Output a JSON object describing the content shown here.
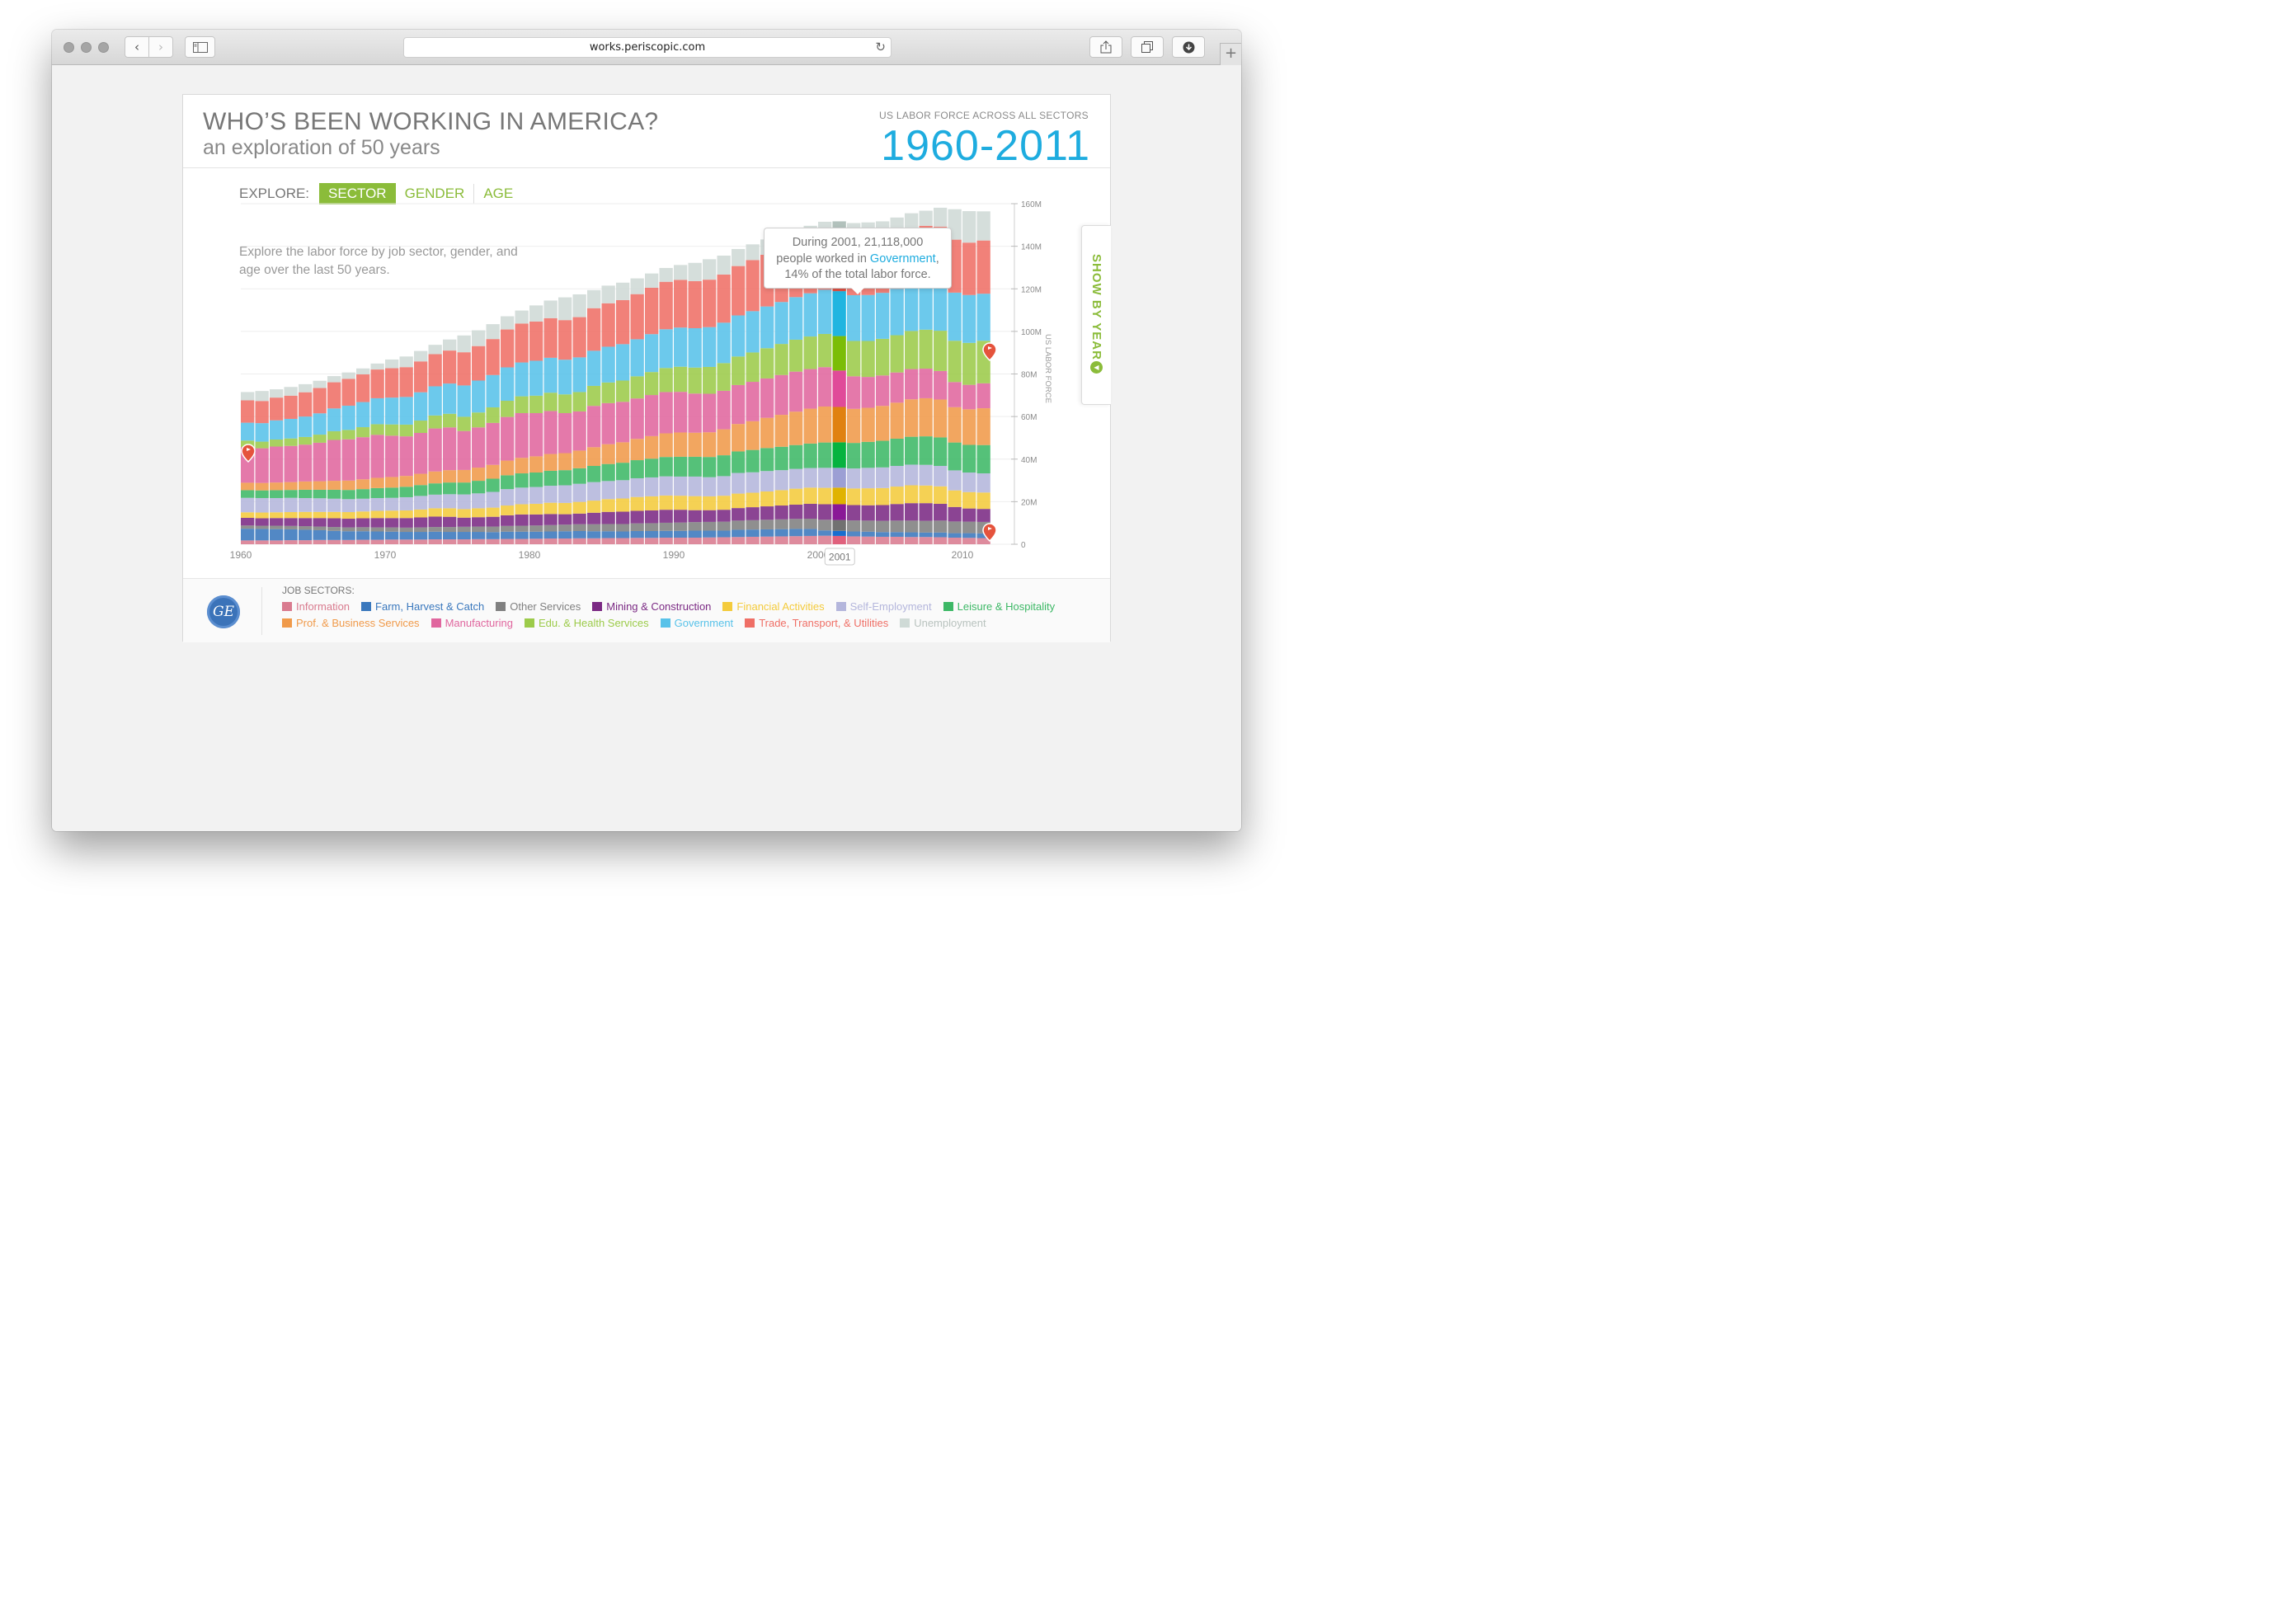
{
  "browser": {
    "url": "works.periscopic.com",
    "back_label": "‹",
    "forward_label": "›",
    "plus_label": "+"
  },
  "header": {
    "title": "WHO’S BEEN WORKING IN AMERICA?",
    "subtitle": "an exploration of 50 years",
    "right_label": "US LABOR FORCE ACROSS ALL SECTORS",
    "year_range": "1960-2011"
  },
  "explore": {
    "label": "EXPLORE:",
    "options": [
      "SECTOR",
      "GENDER",
      "AGE"
    ],
    "active": "SECTOR"
  },
  "description": "Explore the labor force by job sector, gender, and age over the last 50 years.",
  "show_by_year": "SHOW BY YEAR",
  "tooltip": {
    "prefix": "During",
    "year": "2001",
    "count": "21,118,000",
    "line2_prefix": "people worked in",
    "sector": "Government",
    "percent": "14%",
    "line3_suffix": "of the total labor force."
  },
  "footer": {
    "label": "JOB SECTORS:",
    "logo_text": "GE"
  },
  "colors": {
    "accent_green": "#8bbc3a",
    "accent_blue": "#1eacdf"
  },
  "chart_data": {
    "type": "area",
    "title": "US LABOR FORCE",
    "ylabel": "US LABOR FORCE",
    "xlabel": "",
    "ylim": [
      0,
      160
    ],
    "y_unit": "M",
    "y_ticks": [
      "0",
      "20M",
      "40M",
      "60M",
      "80M",
      "100M",
      "120M",
      "140M",
      "160M"
    ],
    "x_ticks": [
      "1960",
      "1970",
      "1980",
      "1990",
      "2000",
      "2010"
    ],
    "highlight_year": 2001,
    "highlight_label": "2001",
    "years": [
      1960,
      1961,
      1962,
      1963,
      1964,
      1965,
      1966,
      1967,
      1968,
      1969,
      1970,
      1971,
      1972,
      1973,
      1974,
      1975,
      1976,
      1977,
      1978,
      1979,
      1980,
      1981,
      1982,
      1983,
      1984,
      1985,
      1986,
      1987,
      1988,
      1989,
      1990,
      1991,
      1992,
      1993,
      1994,
      1995,
      1996,
      1997,
      1998,
      1999,
      2000,
      2001,
      2002,
      2003,
      2004,
      2005,
      2006,
      2007,
      2008,
      2009,
      2010,
      2011
    ],
    "series": [
      {
        "name": "Information",
        "color": "#d97b8f",
        "values": [
          1.8,
          1.8,
          1.8,
          1.9,
          1.9,
          2,
          2,
          2,
          2.1,
          2.1,
          2.2,
          2.2,
          2.2,
          2.3,
          2.3,
          2.3,
          2.4,
          2.4,
          2.5,
          2.5,
          2.6,
          2.7,
          2.7,
          2.8,
          2.8,
          2.9,
          2.9,
          3,
          3,
          3.1,
          3.1,
          3.1,
          3.2,
          3.3,
          3.4,
          3.5,
          3.6,
          3.7,
          3.8,
          3.9,
          4,
          3.9,
          3.7,
          3.6,
          3.5,
          3.5,
          3.4,
          3.4,
          3.3,
          3.1,
          3,
          2.9
        ]
      },
      {
        "name": "Farm, Harvest & Catch",
        "color": "#3a78bd",
        "values": [
          5.5,
          5.4,
          5.3,
          5.1,
          4.9,
          4.6,
          4.3,
          4.1,
          4,
          3.9,
          3.7,
          3.6,
          3.6,
          3.6,
          3.5,
          3.5,
          3.4,
          3.3,
          3.4,
          3.4,
          3.3,
          3.3,
          3.4,
          3.4,
          3.3,
          3.2,
          3.1,
          3.2,
          3.2,
          3.2,
          3.2,
          3.3,
          3.2,
          3.1,
          3.4,
          3.4,
          3.4,
          3.4,
          3.4,
          3.3,
          2.5,
          2.4,
          2.3,
          2.3,
          2.2,
          2.2,
          2.2,
          2.1,
          2.2,
          2.1,
          2.2,
          2.2
        ]
      },
      {
        "name": "Other Services",
        "color": "#808080",
        "values": [
          1.5,
          1.5,
          1.6,
          1.6,
          1.7,
          1.7,
          1.8,
          1.8,
          1.9,
          1.9,
          2,
          2,
          2.1,
          2.2,
          2.3,
          2.4,
          2.5,
          2.6,
          2.7,
          2.8,
          2.9,
          3,
          3.1,
          3.2,
          3.3,
          3.4,
          3.5,
          3.6,
          3.7,
          3.8,
          3.9,
          4,
          4.1,
          4.2,
          4.3,
          4.4,
          4.5,
          4.6,
          4.7,
          4.8,
          5,
          5.1,
          5.2,
          5.2,
          5.3,
          5.4,
          5.5,
          5.5,
          5.6,
          5.5,
          5.4,
          5.4
        ]
      },
      {
        "name": "Mining & Construction",
        "color": "#7b2a84",
        "values": [
          3.6,
          3.5,
          3.6,
          3.7,
          3.8,
          4,
          4.1,
          4.1,
          4.2,
          4.4,
          4.4,
          4.5,
          4.7,
          4.9,
          4.8,
          4.3,
          4.4,
          4.6,
          5,
          5.3,
          5.2,
          5.2,
          4.9,
          5,
          5.4,
          5.7,
          5.8,
          5.9,
          6,
          6.1,
          6,
          5.6,
          5.5,
          5.6,
          5.9,
          6.1,
          6.3,
          6.5,
          6.7,
          7,
          7.3,
          7.4,
          7.2,
          7.2,
          7.4,
          7.8,
          8.2,
          8.3,
          7.9,
          6.8,
          6.2,
          6.1
        ]
      },
      {
        "name": "Financial Activities",
        "color": "#f4cb3c",
        "values": [
          2.6,
          2.7,
          2.7,
          2.8,
          2.9,
          2.9,
          3,
          3.1,
          3.2,
          3.4,
          3.5,
          3.6,
          3.7,
          3.9,
          4,
          4,
          4.2,
          4.3,
          4.6,
          4.8,
          5,
          5.3,
          5.3,
          5.5,
          5.7,
          6,
          6.2,
          6.5,
          6.6,
          6.7,
          6.6,
          6.6,
          6.5,
          6.6,
          6.8,
          6.8,
          7,
          7.2,
          7.5,
          7.6,
          7.7,
          7.8,
          7.8,
          8,
          8,
          8.2,
          8.4,
          8.3,
          8.2,
          7.8,
          7.7,
          7.7
        ]
      },
      {
        "name": "Self-Employment",
        "color": "#b4b6dc",
        "values": [
          6.8,
          6.8,
          6.7,
          6.7,
          6.5,
          6.4,
          6.2,
          6.1,
          6,
          6,
          6,
          6.2,
          6.4,
          6.4,
          6.6,
          6.9,
          7,
          7.4,
          7.7,
          7.8,
          7.9,
          8,
          8.3,
          8.5,
          8.7,
          8.5,
          8.6,
          8.8,
          8.9,
          9,
          9,
          9.2,
          9,
          9.2,
          9.7,
          9.6,
          9.6,
          9.4,
          9.3,
          9.2,
          9.4,
          9.3,
          9.4,
          9.6,
          9.7,
          9.7,
          9.7,
          9.7,
          9.6,
          9.4,
          9.2,
          9
        ]
      },
      {
        "name": "Leisure & Hospitality",
        "color": "#3db866",
        "values": [
          3.6,
          3.6,
          3.7,
          3.7,
          3.9,
          4,
          4.2,
          4.3,
          4.5,
          4.7,
          4.8,
          4.9,
          5.1,
          5.3,
          5.5,
          5.6,
          5.9,
          6.2,
          6.5,
          6.7,
          6.8,
          7,
          7.1,
          7.3,
          7.6,
          8,
          8.2,
          8.5,
          8.8,
          9.1,
          9.3,
          9.3,
          9.5,
          9.8,
          10.1,
          10.5,
          10.8,
          11,
          11.2,
          11.5,
          11.9,
          12,
          12,
          12.2,
          12.5,
          12.8,
          13.1,
          13.4,
          13.4,
          13.1,
          13,
          13.3
        ]
      },
      {
        "name": "Prof. & Business Services",
        "color": "#f09a4a",
        "values": [
          3.5,
          3.5,
          3.6,
          3.7,
          3.9,
          4,
          4.2,
          4.4,
          4.6,
          4.8,
          5,
          5.1,
          5.3,
          5.6,
          5.8,
          5.9,
          6.2,
          6.5,
          6.9,
          7.3,
          7.6,
          7.9,
          8,
          8.3,
          8.8,
          9.3,
          9.6,
          10,
          10.6,
          11.1,
          11.4,
          11.3,
          11.6,
          12.2,
          12.9,
          13.5,
          14.2,
          15,
          15.7,
          16.4,
          16.9,
          16.6,
          16,
          16,
          16.4,
          16.9,
          17.6,
          17.9,
          17.8,
          16.6,
          16.7,
          17.3
        ]
      },
      {
        "name": "Manufacturing",
        "color": "#e0669e",
        "values": [
          16.8,
          16.3,
          16.9,
          17,
          17.3,
          18.1,
          19.2,
          19.4,
          19.8,
          20.2,
          19.4,
          18.6,
          19.2,
          20.2,
          20.1,
          18.3,
          18.9,
          19.7,
          20.5,
          21,
          20.3,
          20.2,
          18.8,
          18.4,
          19.4,
          19.3,
          19,
          19,
          19.3,
          19.4,
          19.1,
          18.4,
          18.1,
          18.1,
          18.3,
          18.5,
          18.5,
          18.7,
          18.8,
          18.6,
          18.5,
          17.1,
          15.3,
          14.5,
          14.3,
          14.2,
          14.2,
          13.9,
          13.4,
          11.8,
          11.5,
          11.7
        ]
      },
      {
        "name": "Edu. & Health Services",
        "color": "#9ccb4a",
        "values": [
          3,
          3.1,
          3.3,
          3.5,
          3.6,
          3.8,
          4.1,
          4.4,
          4.7,
          5,
          5.3,
          5.5,
          5.8,
          6.1,
          6.4,
          6.7,
          7,
          7.3,
          7.6,
          7.9,
          8.2,
          8.6,
          8.8,
          9.1,
          9.4,
          9.7,
          10,
          10.4,
          10.8,
          11.3,
          11.8,
          12.2,
          12.6,
          13,
          13.4,
          13.8,
          14.2,
          14.6,
          15,
          15.3,
          15.6,
          16.2,
          16.6,
          16.9,
          17.2,
          17.5,
          17.9,
          18.3,
          18.9,
          19.4,
          19.7,
          20
        ]
      },
      {
        "name": "Government",
        "color": "#58c2e9",
        "values": [
          8.4,
          8.7,
          9,
          9.2,
          9.6,
          10,
          10.7,
          11.4,
          11.8,
          12.2,
          12.6,
          13,
          13.3,
          13.7,
          14.2,
          14.7,
          15,
          15.2,
          15.7,
          15.9,
          16.4,
          16.4,
          16.3,
          16.3,
          16.5,
          16.8,
          17.1,
          17.4,
          17.8,
          18.2,
          18.4,
          18.5,
          18.7,
          19,
          19.3,
          19.4,
          19.6,
          19.7,
          20,
          20.3,
          20.8,
          21.1,
          21.5,
          21.6,
          21.6,
          21.8,
          22.1,
          22.2,
          22.5,
          22.6,
          22.5,
          22.1
        ]
      },
      {
        "name": "Trade, Transport, & Utilities",
        "color": "#ef6f66",
        "values": [
          10.5,
          10.4,
          10.7,
          10.9,
          11.4,
          11.9,
          12.3,
          12.6,
          13,
          13.5,
          13.8,
          14,
          14.5,
          15.1,
          15.5,
          15.6,
          16.2,
          16.9,
          17.8,
          18.3,
          18.4,
          18.6,
          18.6,
          18.9,
          20,
          20.4,
          20.7,
          21.2,
          21.8,
          22.3,
          22.4,
          22.1,
          22.3,
          22.6,
          23.2,
          24,
          24.3,
          24.7,
          25.2,
          25.8,
          26.2,
          26,
          25.5,
          25.3,
          25.5,
          25.9,
          26.2,
          26.6,
          26.4,
          24.9,
          24.6,
          25
        ]
      },
      {
        "name": "Unemployment",
        "color": "#cfdad6",
        "values": [
          3.9,
          4.7,
          3.9,
          4.1,
          3.8,
          3.4,
          2.9,
          3,
          2.8,
          2.8,
          4.1,
          5,
          4.9,
          4.4,
          5.2,
          7.9,
          7.4,
          7,
          6.2,
          6.1,
          7.6,
          8.3,
          10.7,
          10.7,
          8.5,
          8.3,
          8.2,
          7.4,
          6.7,
          6.5,
          7,
          8.6,
          9.6,
          8.9,
          8,
          7.4,
          7.2,
          6.7,
          6.2,
          5.9,
          5.7,
          6.8,
          8.4,
          8.8,
          8.1,
          7.6,
          7,
          7.1,
          8.9,
          14.3,
          14.8,
          13.7
        ]
      }
    ]
  }
}
